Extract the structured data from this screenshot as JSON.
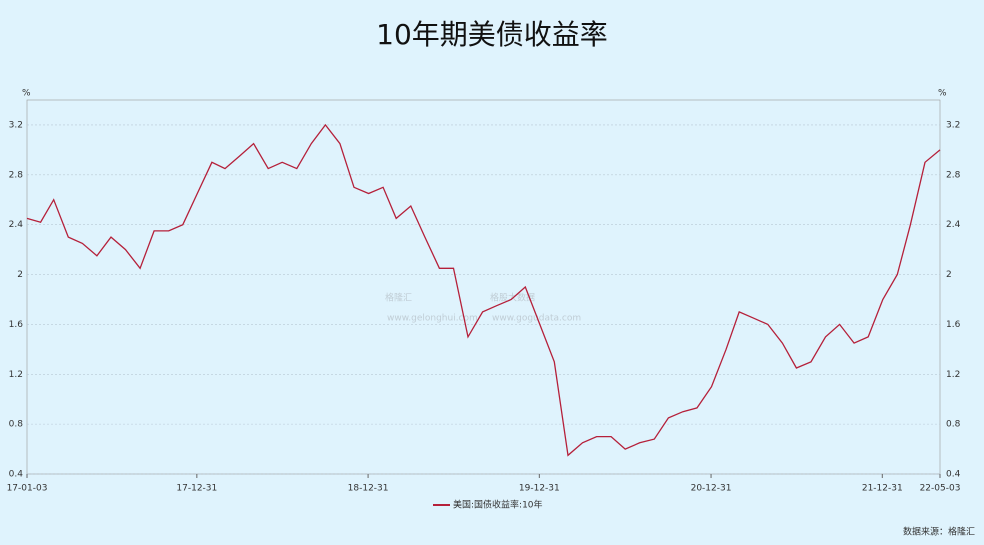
{
  "chart_data": {
    "type": "line",
    "title": "10年期美债收益率",
    "y_unit": "%",
    "x": [
      "17-01-03",
      "17-02-01",
      "17-03-01",
      "17-04-01",
      "17-05-01",
      "17-06-01",
      "17-07-01",
      "17-08-01",
      "17-09-01",
      "17-10-01",
      "17-11-01",
      "17-12-01",
      "18-01-01",
      "18-02-01",
      "18-03-01",
      "18-04-01",
      "18-05-01",
      "18-06-01",
      "18-07-01",
      "18-08-01",
      "18-09-01",
      "18-10-01",
      "18-11-01",
      "18-12-01",
      "19-01-01",
      "19-02-01",
      "19-03-01",
      "19-04-01",
      "19-05-01",
      "19-06-01",
      "19-07-01",
      "19-08-01",
      "19-09-01",
      "19-10-01",
      "19-11-01",
      "19-12-01",
      "20-01-01",
      "20-02-01",
      "20-03-01",
      "20-04-01",
      "20-05-01",
      "20-06-01",
      "20-07-01",
      "20-08-01",
      "20-09-01",
      "20-10-01",
      "20-11-01",
      "20-12-01",
      "21-01-01",
      "21-02-01",
      "21-03-01",
      "21-04-01",
      "21-05-01",
      "21-06-01",
      "21-07-01",
      "21-08-01",
      "21-09-01",
      "21-10-01",
      "21-11-01",
      "21-12-01",
      "22-01-01",
      "22-02-01",
      "22-03-01",
      "22-04-01",
      "22-05-03"
    ],
    "series": [
      {
        "name": "美国:国债收益率:10年",
        "color": "#b5203a",
        "values": [
          2.45,
          2.42,
          2.6,
          2.3,
          2.25,
          2.15,
          2.3,
          2.2,
          2.05,
          2.35,
          2.35,
          2.4,
          2.65,
          2.9,
          2.85,
          2.95,
          3.05,
          2.85,
          2.9,
          2.85,
          3.05,
          3.2,
          3.05,
          2.7,
          2.65,
          2.7,
          2.45,
          2.55,
          2.3,
          2.05,
          2.05,
          1.5,
          1.7,
          1.75,
          1.8,
          1.9,
          1.6,
          1.3,
          0.55,
          0.65,
          0.7,
          0.7,
          0.6,
          0.65,
          0.68,
          0.85,
          0.9,
          0.93,
          1.1,
          1.4,
          1.7,
          1.65,
          1.6,
          1.45,
          1.25,
          1.3,
          1.5,
          1.6,
          1.45,
          1.5,
          1.8,
          2.0,
          2.4,
          2.9,
          3.0
        ]
      }
    ],
    "xticks": [
      "17-01-03",
      "17-12-31",
      "18-12-31",
      "19-12-31",
      "20-12-31",
      "21-12-31",
      "22-05-03"
    ],
    "ylim": [
      0.4,
      3.4
    ],
    "yticks": [
      0.4,
      0.8,
      1.2,
      1.6,
      2,
      2.4,
      2.8,
      3.2
    ],
    "grid": true,
    "watermark": [
      "格隆汇",
      "www.gelonghui.com",
      "格股大数据",
      "www.gogudata.com"
    ],
    "source": "数据来源：格隆汇"
  }
}
